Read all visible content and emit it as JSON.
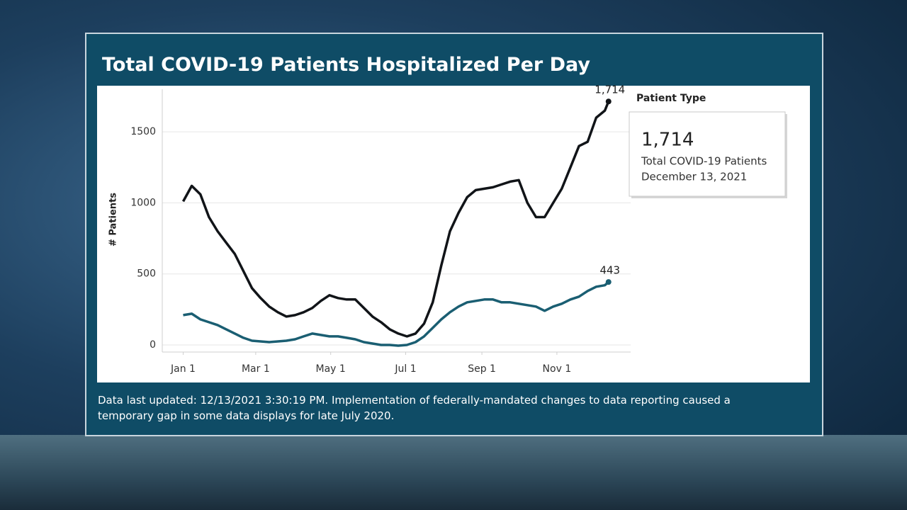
{
  "title": "Total COVID-19 Patients Hospitalized Per Day",
  "footer": "Data last updated: 12/13/2021 3:30:19 PM. Implementation of federally-mandated changes to data reporting caused a temporary gap in some data displays for late July 2020.",
  "chart_data": {
    "type": "line",
    "y_label": "# Patients",
    "legend_title": "Patient Type",
    "x": [
      0,
      7,
      14,
      21,
      28,
      35,
      42,
      49,
      56,
      63,
      70,
      77,
      84,
      91,
      98,
      105,
      112,
      119,
      126,
      133,
      140,
      147,
      154,
      161,
      168,
      175,
      182,
      189,
      196,
      203,
      210,
      217,
      224,
      231,
      238,
      245,
      252,
      259,
      266,
      273,
      280,
      287,
      294,
      301,
      308,
      315,
      322,
      329,
      336,
      343,
      346
    ],
    "xlim": [
      -17,
      364
    ],
    "xticks": [
      {
        "value": 0,
        "label": "Jan 1"
      },
      {
        "value": 59,
        "label": "Mar 1"
      },
      {
        "value": 120,
        "label": "May 1"
      },
      {
        "value": 181,
        "label": "Jul 1"
      },
      {
        "value": 243,
        "label": "Sep 1"
      },
      {
        "value": 304,
        "label": "Nov 1"
      }
    ],
    "ylim": [
      -50,
      1800
    ],
    "yticks": [
      0,
      500,
      1000,
      1500
    ],
    "grid": true,
    "series": [
      {
        "name": "Total COVID-19 Patients",
        "color": "#111418",
        "values": [
          1010,
          1120,
          1060,
          900,
          800,
          720,
          640,
          520,
          400,
          330,
          270,
          230,
          200,
          210,
          230,
          260,
          310,
          350,
          330,
          320,
          320,
          260,
          200,
          160,
          110,
          80,
          60,
          80,
          150,
          300,
          560,
          800,
          930,
          1040,
          1090,
          1100,
          1110,
          1130,
          1150,
          1160,
          1000,
          900,
          900,
          1000,
          1100,
          1250,
          1400,
          1430,
          1600,
          1650,
          1714
        ],
        "value_labels": [
          null,
          null,
          null,
          null,
          null,
          null,
          null,
          null,
          null,
          null,
          null,
          null,
          null,
          null,
          null,
          null,
          null,
          null,
          null,
          null,
          null,
          null,
          null,
          null,
          null,
          null,
          null,
          null,
          null,
          null,
          null,
          null,
          null,
          null,
          null,
          null,
          null,
          null,
          null,
          null,
          null,
          null,
          null,
          null,
          null,
          null,
          null,
          null,
          null,
          null,
          "1,714"
        ]
      },
      {
        "color": "#1a5e72",
        "values": [
          210,
          220,
          180,
          160,
          140,
          110,
          80,
          50,
          30,
          25,
          20,
          25,
          30,
          40,
          60,
          80,
          70,
          60,
          60,
          50,
          40,
          20,
          10,
          0,
          0,
          -5,
          0,
          20,
          60,
          120,
          180,
          230,
          270,
          300,
          310,
          320,
          320,
          300,
          300,
          290,
          280,
          270,
          240,
          270,
          290,
          320,
          340,
          380,
          410,
          420,
          443
        ]
      }
    ],
    "tooltip": {
      "date": "December 13, 2021"
    }
  }
}
